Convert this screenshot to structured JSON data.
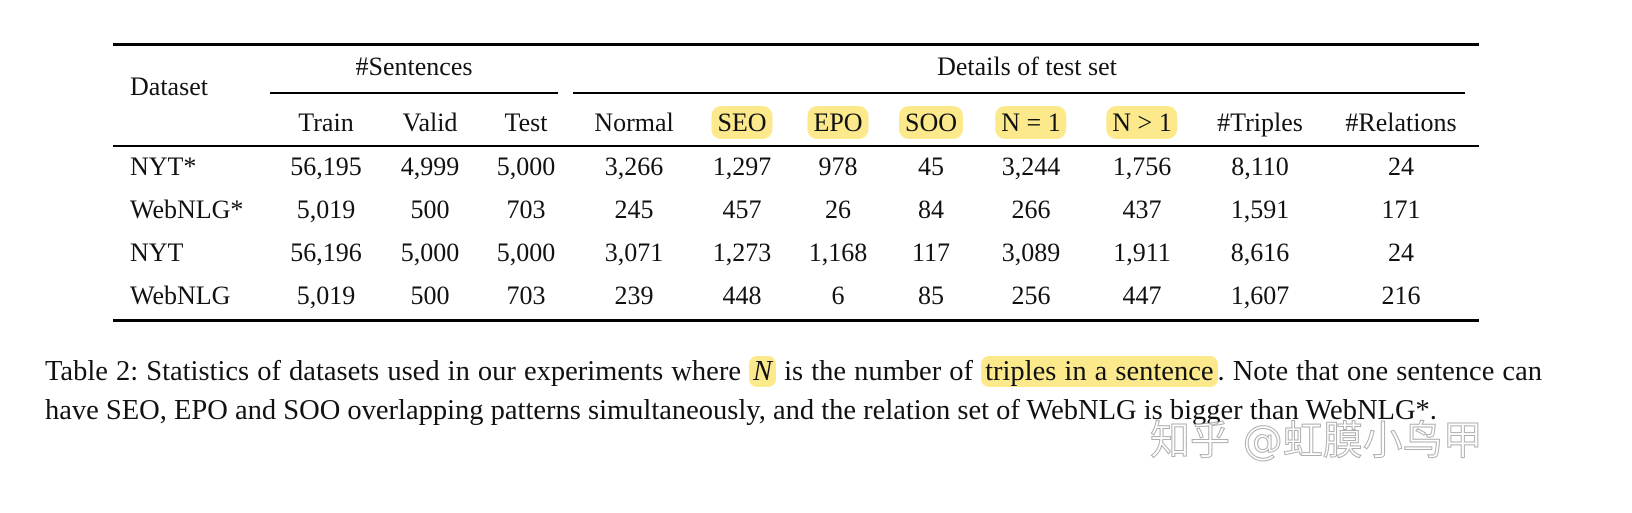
{
  "table": {
    "header": {
      "dataset": "Dataset",
      "groups": [
        {
          "label": "#Sentences",
          "columns": [
            {
              "text": "Train"
            },
            {
              "text": "Valid"
            },
            {
              "text": "Test"
            }
          ]
        },
        {
          "label": "Details of test set",
          "columns": [
            {
              "text": "Normal"
            },
            {
              "text": "SEO",
              "highlight": true
            },
            {
              "text": "EPO",
              "highlight": true
            },
            {
              "text": "SOO",
              "highlight": true
            },
            {
              "text": "N = 1",
              "highlight": true
            },
            {
              "text": "N > 1",
              "highlight": true
            },
            {
              "text": "#Triples"
            },
            {
              "text": "#Relations"
            }
          ]
        }
      ]
    },
    "rows": [
      [
        "NYT*",
        "56,195",
        "4,999",
        "5,000",
        "3,266",
        "1,297",
        "978",
        "45",
        "3,244",
        "1,756",
        "8,110",
        "24"
      ],
      [
        "WebNLG*",
        "5,019",
        "500",
        "703",
        "245",
        "457",
        "26",
        "84",
        "266",
        "437",
        "1,591",
        "171"
      ],
      [
        "NYT",
        "56,196",
        "5,000",
        "5,000",
        "3,071",
        "1,273",
        "1,168",
        "117",
        "3,089",
        "1,911",
        "8,616",
        "24"
      ],
      [
        "WebNLG",
        "5,019",
        "500",
        "703",
        "239",
        "448",
        "6",
        "85",
        "256",
        "447",
        "1,607",
        "216"
      ]
    ]
  },
  "caption": [
    {
      "text": "Table 2: Statistics of datasets used in our experiments where "
    },
    {
      "text": "N",
      "highlight": true
    },
    {
      "text": " is the number of "
    },
    {
      "text": "triples in a sentence",
      "highlight": true
    },
    {
      "text": ". Note that one sentence can have SEO, EPO and SOO overlapping patterns simultaneously, and the relation set of WebNLG is bigger than WebNLG*."
    }
  ],
  "watermark": "知乎 @虹膜小鸟甲"
}
